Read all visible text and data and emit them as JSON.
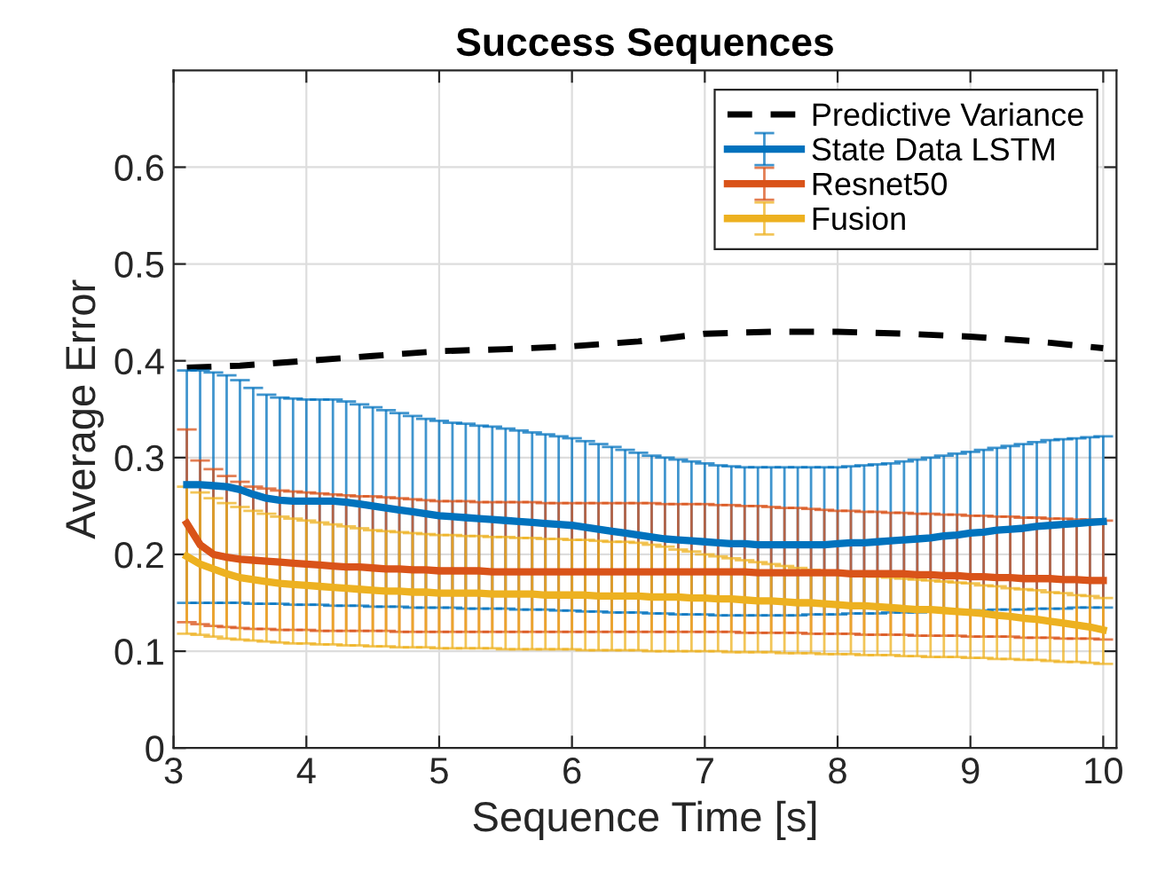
{
  "chart_data": {
    "type": "line",
    "title": "Success Sequences",
    "xlabel": "Sequence Time [s]",
    "ylabel": "Average Error",
    "xlim": [
      3,
      10.1
    ],
    "ylim": [
      0,
      0.7
    ],
    "xticks": [
      3,
      4,
      5,
      6,
      7,
      8,
      9,
      10
    ],
    "yticks": [
      0,
      0.1,
      0.2,
      0.3,
      0.4,
      0.5,
      0.6
    ],
    "grid": true,
    "legend": "top right",
    "series": [
      {
        "name": "Predictive Variance",
        "color": "#000000",
        "line_style": "dashed",
        "x": [
          3.1,
          3.5,
          4.0,
          4.5,
          5.0,
          5.5,
          6.0,
          6.5,
          7.0,
          7.5,
          8.0,
          8.5,
          9.0,
          9.5,
          10.0
        ],
        "values": [
          0.393,
          0.395,
          0.4,
          0.405,
          0.41,
          0.412,
          0.415,
          0.42,
          0.428,
          0.43,
          0.43,
          0.428,
          0.425,
          0.42,
          0.413
        ]
      },
      {
        "name": "State Data LSTM",
        "color": "#0072bd",
        "line_style": "solid",
        "x": [
          3.1,
          3.2,
          3.3,
          3.4,
          3.5,
          3.6,
          3.7,
          3.8,
          3.9,
          4.0,
          4.1,
          4.2,
          4.3,
          4.4,
          4.5,
          4.6,
          4.7,
          4.8,
          4.9,
          5.0,
          5.1,
          5.2,
          5.3,
          5.4,
          5.5,
          5.6,
          5.7,
          5.8,
          5.9,
          6.0,
          6.1,
          6.2,
          6.3,
          6.4,
          6.5,
          6.6,
          6.7,
          6.8,
          6.9,
          7.0,
          7.1,
          7.2,
          7.3,
          7.4,
          7.5,
          7.6,
          7.7,
          7.8,
          7.9,
          8.0,
          8.1,
          8.2,
          8.3,
          8.4,
          8.5,
          8.6,
          8.7,
          8.8,
          8.9,
          9.0,
          9.1,
          9.2,
          9.3,
          9.4,
          9.5,
          9.6,
          9.7,
          9.8,
          9.9,
          10.0
        ],
        "values": [
          0.272,
          0.272,
          0.271,
          0.27,
          0.267,
          0.262,
          0.258,
          0.256,
          0.255,
          0.255,
          0.255,
          0.255,
          0.254,
          0.252,
          0.25,
          0.248,
          0.246,
          0.244,
          0.242,
          0.24,
          0.239,
          0.238,
          0.237,
          0.236,
          0.235,
          0.234,
          0.233,
          0.232,
          0.231,
          0.23,
          0.228,
          0.226,
          0.224,
          0.222,
          0.22,
          0.218,
          0.216,
          0.215,
          0.214,
          0.213,
          0.212,
          0.211,
          0.211,
          0.21,
          0.21,
          0.21,
          0.21,
          0.21,
          0.21,
          0.211,
          0.212,
          0.212,
          0.213,
          0.214,
          0.215,
          0.216,
          0.217,
          0.219,
          0.22,
          0.222,
          0.223,
          0.225,
          0.226,
          0.227,
          0.229,
          0.23,
          0.231,
          0.232,
          0.233,
          0.234
        ],
        "errors": [
          [
            0.15,
            0.39
          ],
          [
            0.15,
            0.39
          ],
          [
            0.15,
            0.388
          ],
          [
            0.15,
            0.385
          ],
          [
            0.15,
            0.38
          ],
          [
            0.149,
            0.372
          ],
          [
            0.149,
            0.365
          ],
          [
            0.149,
            0.362
          ],
          [
            0.148,
            0.361
          ],
          [
            0.148,
            0.36
          ],
          [
            0.148,
            0.36
          ],
          [
            0.147,
            0.36
          ],
          [
            0.147,
            0.358
          ],
          [
            0.147,
            0.355
          ],
          [
            0.146,
            0.352
          ],
          [
            0.146,
            0.349
          ],
          [
            0.146,
            0.346
          ],
          [
            0.145,
            0.343
          ],
          [
            0.145,
            0.34
          ],
          [
            0.145,
            0.338
          ],
          [
            0.145,
            0.336
          ],
          [
            0.144,
            0.335
          ],
          [
            0.144,
            0.333
          ],
          [
            0.144,
            0.332
          ],
          [
            0.144,
            0.33
          ],
          [
            0.143,
            0.328
          ],
          [
            0.143,
            0.326
          ],
          [
            0.143,
            0.324
          ],
          [
            0.142,
            0.322
          ],
          [
            0.142,
            0.32
          ],
          [
            0.141,
            0.317
          ],
          [
            0.141,
            0.314
          ],
          [
            0.14,
            0.311
          ],
          [
            0.14,
            0.308
          ],
          [
            0.14,
            0.305
          ],
          [
            0.139,
            0.302
          ],
          [
            0.139,
            0.3
          ],
          [
            0.138,
            0.298
          ],
          [
            0.138,
            0.296
          ],
          [
            0.138,
            0.294
          ],
          [
            0.137,
            0.292
          ],
          [
            0.137,
            0.291
          ],
          [
            0.137,
            0.29
          ],
          [
            0.137,
            0.29
          ],
          [
            0.137,
            0.29
          ],
          [
            0.137,
            0.29
          ],
          [
            0.137,
            0.29
          ],
          [
            0.138,
            0.29
          ],
          [
            0.138,
            0.29
          ],
          [
            0.138,
            0.29
          ],
          [
            0.139,
            0.291
          ],
          [
            0.139,
            0.292
          ],
          [
            0.139,
            0.293
          ],
          [
            0.14,
            0.294
          ],
          [
            0.14,
            0.296
          ],
          [
            0.14,
            0.298
          ],
          [
            0.141,
            0.3
          ],
          [
            0.141,
            0.302
          ],
          [
            0.142,
            0.304
          ],
          [
            0.142,
            0.306
          ],
          [
            0.142,
            0.308
          ],
          [
            0.143,
            0.31
          ],
          [
            0.143,
            0.312
          ],
          [
            0.143,
            0.314
          ],
          [
            0.144,
            0.316
          ],
          [
            0.144,
            0.318
          ],
          [
            0.144,
            0.319
          ],
          [
            0.145,
            0.32
          ],
          [
            0.145,
            0.321
          ],
          [
            0.145,
            0.322
          ]
        ]
      },
      {
        "name": "Resnet50",
        "color": "#d95319",
        "line_style": "solid",
        "x": [
          3.1,
          3.2,
          3.3,
          3.4,
          3.5,
          3.6,
          3.7,
          3.8,
          3.9,
          4.0,
          4.1,
          4.2,
          4.3,
          4.4,
          4.5,
          4.6,
          4.7,
          4.8,
          4.9,
          5.0,
          5.1,
          5.2,
          5.3,
          5.4,
          5.5,
          5.6,
          5.7,
          5.8,
          5.9,
          6.0,
          6.1,
          6.2,
          6.3,
          6.4,
          6.5,
          6.6,
          6.7,
          6.8,
          6.9,
          7.0,
          7.1,
          7.2,
          7.3,
          7.4,
          7.5,
          7.6,
          7.7,
          7.8,
          7.9,
          8.0,
          8.1,
          8.2,
          8.3,
          8.4,
          8.5,
          8.6,
          8.7,
          8.8,
          8.9,
          9.0,
          9.1,
          9.2,
          9.3,
          9.4,
          9.5,
          9.6,
          9.7,
          9.8,
          9.9,
          10.0
        ],
        "values": [
          0.232,
          0.21,
          0.2,
          0.197,
          0.195,
          0.194,
          0.193,
          0.192,
          0.191,
          0.19,
          0.189,
          0.188,
          0.187,
          0.187,
          0.186,
          0.185,
          0.185,
          0.184,
          0.184,
          0.183,
          0.183,
          0.183,
          0.183,
          0.182,
          0.182,
          0.182,
          0.182,
          0.182,
          0.182,
          0.182,
          0.182,
          0.182,
          0.182,
          0.182,
          0.182,
          0.182,
          0.182,
          0.182,
          0.182,
          0.182,
          0.182,
          0.182,
          0.182,
          0.181,
          0.181,
          0.181,
          0.181,
          0.181,
          0.181,
          0.181,
          0.18,
          0.18,
          0.18,
          0.18,
          0.18,
          0.179,
          0.179,
          0.178,
          0.178,
          0.177,
          0.177,
          0.176,
          0.176,
          0.175,
          0.175,
          0.175,
          0.174,
          0.174,
          0.173,
          0.173
        ],
        "errors": [
          [
            0.13,
            0.329
          ],
          [
            0.128,
            0.297
          ],
          [
            0.126,
            0.288
          ],
          [
            0.125,
            0.281
          ],
          [
            0.124,
            0.275
          ],
          [
            0.123,
            0.27
          ],
          [
            0.123,
            0.268
          ],
          [
            0.122,
            0.266
          ],
          [
            0.122,
            0.265
          ],
          [
            0.122,
            0.264
          ],
          [
            0.121,
            0.263
          ],
          [
            0.121,
            0.262
          ],
          [
            0.121,
            0.261
          ],
          [
            0.121,
            0.26
          ],
          [
            0.121,
            0.26
          ],
          [
            0.121,
            0.259
          ],
          [
            0.12,
            0.258
          ],
          [
            0.12,
            0.257
          ],
          [
            0.12,
            0.256
          ],
          [
            0.12,
            0.255
          ],
          [
            0.12,
            0.255
          ],
          [
            0.12,
            0.255
          ],
          [
            0.12,
            0.254
          ],
          [
            0.12,
            0.254
          ],
          [
            0.12,
            0.254
          ],
          [
            0.12,
            0.254
          ],
          [
            0.12,
            0.254
          ],
          [
            0.12,
            0.253
          ],
          [
            0.12,
            0.253
          ],
          [
            0.12,
            0.253
          ],
          [
            0.12,
            0.253
          ],
          [
            0.12,
            0.253
          ],
          [
            0.12,
            0.253
          ],
          [
            0.12,
            0.253
          ],
          [
            0.12,
            0.253
          ],
          [
            0.12,
            0.253
          ],
          [
            0.12,
            0.252
          ],
          [
            0.12,
            0.252
          ],
          [
            0.12,
            0.252
          ],
          [
            0.12,
            0.252
          ],
          [
            0.12,
            0.251
          ],
          [
            0.12,
            0.251
          ],
          [
            0.119,
            0.25
          ],
          [
            0.119,
            0.25
          ],
          [
            0.119,
            0.249
          ],
          [
            0.119,
            0.248
          ],
          [
            0.119,
            0.248
          ],
          [
            0.118,
            0.247
          ],
          [
            0.118,
            0.246
          ],
          [
            0.118,
            0.245
          ],
          [
            0.118,
            0.245
          ],
          [
            0.117,
            0.244
          ],
          [
            0.117,
            0.244
          ],
          [
            0.117,
            0.243
          ],
          [
            0.117,
            0.243
          ],
          [
            0.116,
            0.242
          ],
          [
            0.116,
            0.242
          ],
          [
            0.116,
            0.241
          ],
          [
            0.116,
            0.241
          ],
          [
            0.115,
            0.24
          ],
          [
            0.115,
            0.24
          ],
          [
            0.115,
            0.239
          ],
          [
            0.115,
            0.239
          ],
          [
            0.114,
            0.238
          ],
          [
            0.114,
            0.238
          ],
          [
            0.114,
            0.237
          ],
          [
            0.113,
            0.237
          ],
          [
            0.113,
            0.236
          ],
          [
            0.113,
            0.236
          ],
          [
            0.112,
            0.235
          ]
        ]
      },
      {
        "name": "Fusion",
        "color": "#edb120",
        "line_style": "solid",
        "x": [
          3.1,
          3.2,
          3.3,
          3.4,
          3.5,
          3.6,
          3.7,
          3.8,
          3.9,
          4.0,
          4.1,
          4.2,
          4.3,
          4.4,
          4.5,
          4.6,
          4.7,
          4.8,
          4.9,
          5.0,
          5.1,
          5.2,
          5.3,
          5.4,
          5.5,
          5.6,
          5.7,
          5.8,
          5.9,
          6.0,
          6.1,
          6.2,
          6.3,
          6.4,
          6.5,
          6.6,
          6.7,
          6.8,
          6.9,
          7.0,
          7.1,
          7.2,
          7.3,
          7.4,
          7.5,
          7.6,
          7.7,
          7.8,
          7.9,
          8.0,
          8.1,
          8.2,
          8.3,
          8.4,
          8.5,
          8.6,
          8.7,
          8.8,
          8.9,
          9.0,
          9.1,
          9.2,
          9.3,
          9.4,
          9.5,
          9.6,
          9.7,
          9.8,
          9.9,
          10.0
        ],
        "values": [
          0.198,
          0.19,
          0.185,
          0.18,
          0.176,
          0.174,
          0.172,
          0.17,
          0.169,
          0.168,
          0.167,
          0.166,
          0.165,
          0.164,
          0.163,
          0.162,
          0.162,
          0.161,
          0.161,
          0.16,
          0.16,
          0.16,
          0.16,
          0.159,
          0.159,
          0.159,
          0.159,
          0.158,
          0.158,
          0.158,
          0.158,
          0.157,
          0.157,
          0.157,
          0.157,
          0.156,
          0.156,
          0.156,
          0.155,
          0.155,
          0.154,
          0.154,
          0.153,
          0.152,
          0.152,
          0.151,
          0.15,
          0.15,
          0.149,
          0.148,
          0.147,
          0.147,
          0.146,
          0.145,
          0.144,
          0.143,
          0.143,
          0.142,
          0.141,
          0.14,
          0.139,
          0.137,
          0.136,
          0.134,
          0.133,
          0.131,
          0.129,
          0.127,
          0.125,
          0.122
        ],
        "errors": [
          [
            0.118,
            0.27
          ],
          [
            0.117,
            0.264
          ],
          [
            0.115,
            0.258
          ],
          [
            0.113,
            0.253
          ],
          [
            0.112,
            0.249
          ],
          [
            0.111,
            0.245
          ],
          [
            0.11,
            0.242
          ],
          [
            0.109,
            0.239
          ],
          [
            0.108,
            0.237
          ],
          [
            0.108,
            0.235
          ],
          [
            0.107,
            0.233
          ],
          [
            0.107,
            0.231
          ],
          [
            0.106,
            0.229
          ],
          [
            0.106,
            0.227
          ],
          [
            0.105,
            0.225
          ],
          [
            0.105,
            0.224
          ],
          [
            0.104,
            0.223
          ],
          [
            0.104,
            0.222
          ],
          [
            0.104,
            0.221
          ],
          [
            0.103,
            0.22
          ],
          [
            0.103,
            0.22
          ],
          [
            0.103,
            0.219
          ],
          [
            0.103,
            0.219
          ],
          [
            0.103,
            0.218
          ],
          [
            0.102,
            0.218
          ],
          [
            0.102,
            0.217
          ],
          [
            0.102,
            0.217
          ],
          [
            0.102,
            0.216
          ],
          [
            0.102,
            0.216
          ],
          [
            0.102,
            0.215
          ],
          [
            0.101,
            0.215
          ],
          [
            0.101,
            0.214
          ],
          [
            0.101,
            0.213
          ],
          [
            0.101,
            0.213
          ],
          [
            0.101,
            0.212
          ],
          [
            0.1,
            0.21
          ],
          [
            0.1,
            0.208
          ],
          [
            0.1,
            0.205
          ],
          [
            0.1,
            0.203
          ],
          [
            0.1,
            0.2
          ],
          [
            0.1,
            0.198
          ],
          [
            0.099,
            0.196
          ],
          [
            0.099,
            0.194
          ],
          [
            0.099,
            0.192
          ],
          [
            0.099,
            0.19
          ],
          [
            0.098,
            0.188
          ],
          [
            0.098,
            0.186
          ],
          [
            0.098,
            0.184
          ],
          [
            0.097,
            0.182
          ],
          [
            0.097,
            0.18
          ],
          [
            0.097,
            0.179
          ],
          [
            0.096,
            0.178
          ],
          [
            0.096,
            0.177
          ],
          [
            0.096,
            0.176
          ],
          [
            0.095,
            0.175
          ],
          [
            0.095,
            0.174
          ],
          [
            0.094,
            0.173
          ],
          [
            0.094,
            0.172
          ],
          [
            0.094,
            0.171
          ],
          [
            0.093,
            0.17
          ],
          [
            0.093,
            0.168
          ],
          [
            0.092,
            0.167
          ],
          [
            0.092,
            0.165
          ],
          [
            0.091,
            0.164
          ],
          [
            0.091,
            0.163
          ],
          [
            0.09,
            0.161
          ],
          [
            0.089,
            0.16
          ],
          [
            0.089,
            0.158
          ],
          [
            0.088,
            0.157
          ],
          [
            0.087,
            0.155
          ]
        ]
      }
    ]
  }
}
